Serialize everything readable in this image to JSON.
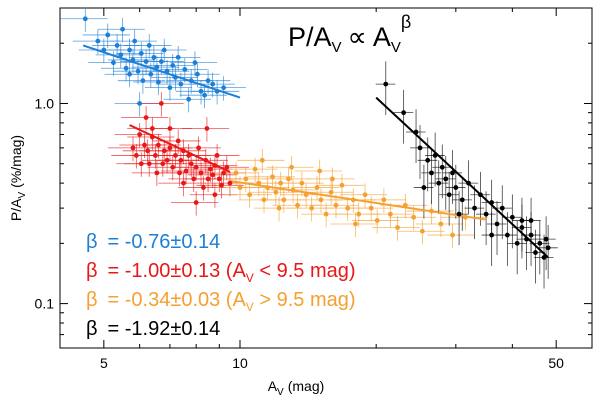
{
  "chart_data": {
    "type": "scatter",
    "title": {
      "main": "P/A",
      "sub": "V",
      "prop": "∝",
      "rhs": "A",
      "rhs_sub": "V",
      "exp": "β"
    },
    "xlabel": {
      "main": "A",
      "sub": "V",
      "unit": "(mag)"
    },
    "ylabel": {
      "main": "P/A",
      "sub": "V",
      "unit": "(%/mag)"
    },
    "xscale": "log",
    "yscale": "log",
    "xlim": [
      4.0,
      60.0
    ],
    "ylim": [
      0.06,
      3.0
    ],
    "xticks": [
      {
        "value": 5,
        "label": "5"
      },
      {
        "value": 10,
        "label": "10"
      },
      {
        "value": 50,
        "label": "50"
      }
    ],
    "yticks": [
      {
        "value": 1.0,
        "label": "1.0"
      },
      {
        "value": 0.1,
        "label": "0.1"
      }
    ],
    "series": [
      {
        "name": "blue",
        "color": "#1e7fd6",
        "fit": {
          "beta": -0.76,
          "x": [
            4.5,
            10.0
          ],
          "y": [
            1.95,
            1.07
          ]
        },
        "points": [
          [
            4.55,
            2.65
          ],
          [
            4.85,
            2.05
          ],
          [
            5.0,
            1.85
          ],
          [
            5.1,
            2.2
          ],
          [
            5.25,
            1.6
          ],
          [
            5.35,
            1.95
          ],
          [
            5.45,
            1.75
          ],
          [
            5.5,
            2.35
          ],
          [
            5.6,
            1.5
          ],
          [
            5.7,
            1.85
          ],
          [
            5.8,
            1.65
          ],
          [
            5.85,
            2.05
          ],
          [
            5.95,
            1.45
          ],
          [
            6.05,
            1.78
          ],
          [
            6.1,
            1.3
          ],
          [
            6.2,
            1.62
          ],
          [
            6.3,
            1.95
          ],
          [
            6.35,
            1.4
          ],
          [
            6.45,
            1.7
          ],
          [
            6.55,
            1.52
          ],
          [
            6.6,
            1.28
          ],
          [
            6.7,
            1.62
          ],
          [
            6.8,
            1.85
          ],
          [
            6.9,
            1.45
          ],
          [
            7.0,
            1.2
          ],
          [
            7.1,
            1.55
          ],
          [
            7.2,
            1.35
          ],
          [
            7.3,
            1.7
          ],
          [
            7.4,
            1.25
          ],
          [
            7.55,
            1.48
          ],
          [
            7.7,
            1.05
          ],
          [
            7.8,
            1.3
          ],
          [
            7.95,
            1.6
          ],
          [
            8.05,
            1.4
          ],
          [
            8.2,
            1.15
          ],
          [
            8.35,
            1.1
          ],
          [
            8.5,
            1.3
          ],
          [
            8.7,
            1.25
          ],
          [
            8.9,
            1.15
          ],
          [
            9.2,
            1.2
          ],
          [
            6.0,
            1.0
          ],
          [
            5.7,
            1.4
          ]
        ]
      },
      {
        "name": "red",
        "color": "#e81818",
        "fit": {
          "beta": -1.0,
          "x": [
            5.7,
            9.5
          ],
          "y": [
            0.78,
            0.455
          ]
        },
        "points": [
          [
            5.8,
            0.6
          ],
          [
            5.9,
            0.55
          ],
          [
            6.0,
            0.7
          ],
          [
            6.05,
            0.5
          ],
          [
            6.15,
            0.62
          ],
          [
            6.2,
            0.85
          ],
          [
            6.25,
            0.58
          ],
          [
            6.3,
            0.5
          ],
          [
            6.4,
            0.68
          ],
          [
            6.5,
            0.55
          ],
          [
            6.55,
            0.45
          ],
          [
            6.6,
            0.62
          ],
          [
            6.7,
            1.0
          ],
          [
            6.75,
            0.5
          ],
          [
            6.8,
            0.58
          ],
          [
            6.9,
            0.52
          ],
          [
            7.0,
            0.6
          ],
          [
            7.1,
            0.48
          ],
          [
            7.2,
            0.55
          ],
          [
            7.3,
            0.65
          ],
          [
            7.35,
            0.45
          ],
          [
            7.4,
            0.52
          ],
          [
            7.5,
            0.58
          ],
          [
            7.6,
            0.46
          ],
          [
            7.7,
            0.55
          ],
          [
            7.8,
            0.5
          ],
          [
            7.9,
            0.42
          ],
          [
            8.0,
            0.48
          ],
          [
            8.1,
            0.6
          ],
          [
            8.2,
            0.45
          ],
          [
            8.3,
            0.38
          ],
          [
            8.4,
            0.52
          ],
          [
            8.5,
            0.42
          ],
          [
            8.6,
            0.47
          ],
          [
            8.7,
            0.44
          ],
          [
            8.8,
            0.35
          ],
          [
            8.9,
            0.55
          ],
          [
            9.0,
            0.42
          ],
          [
            9.1,
            0.39
          ],
          [
            9.2,
            0.45
          ],
          [
            9.35,
            0.48
          ],
          [
            9.5,
            0.4
          ],
          [
            8.45,
            0.75
          ],
          [
            7.0,
            0.75
          ],
          [
            8.0,
            0.32
          ],
          [
            6.4,
            0.75
          ],
          [
            7.5,
            0.4
          ],
          [
            8.8,
            0.49
          ]
        ]
      },
      {
        "name": "orange",
        "color": "#f5a030",
        "fit": {
          "beta": -0.34,
          "x": [
            9.5,
            35.0
          ],
          "y": [
            0.41,
            0.263
          ]
        },
        "points": [
          [
            9.8,
            0.45
          ],
          [
            10.0,
            0.38
          ],
          [
            10.3,
            0.42
          ],
          [
            10.5,
            0.35
          ],
          [
            10.8,
            0.47
          ],
          [
            11.0,
            0.4
          ],
          [
            11.3,
            0.33
          ],
          [
            11.5,
            0.38
          ],
          [
            11.8,
            0.43
          ],
          [
            12.0,
            0.36
          ],
          [
            12.3,
            0.4
          ],
          [
            12.5,
            0.33
          ],
          [
            12.8,
            0.42
          ],
          [
            13.1,
            0.37
          ],
          [
            13.4,
            0.31
          ],
          [
            13.7,
            0.4
          ],
          [
            14.0,
            0.35
          ],
          [
            14.4,
            0.3
          ],
          [
            14.8,
            0.38
          ],
          [
            15.1,
            0.33
          ],
          [
            15.5,
            0.28
          ],
          [
            15.9,
            0.36
          ],
          [
            16.3,
            0.31
          ],
          [
            16.8,
            0.39
          ],
          [
            17.3,
            0.3
          ],
          [
            17.8,
            0.33
          ],
          [
            18.3,
            0.28
          ],
          [
            18.9,
            0.35
          ],
          [
            19.5,
            0.3
          ],
          [
            20.1,
            0.26
          ],
          [
            20.8,
            0.33
          ],
          [
            21.5,
            0.28
          ],
          [
            22.3,
            0.24
          ],
          [
            23.2,
            0.31
          ],
          [
            24.2,
            0.27
          ],
          [
            25.3,
            0.23
          ],
          [
            26.5,
            0.29
          ],
          [
            27.8,
            0.25
          ],
          [
            29.5,
            0.22
          ],
          [
            31.5,
            0.27
          ],
          [
            13.0,
            0.48
          ],
          [
            15.0,
            0.46
          ],
          [
            11.2,
            0.52
          ],
          [
            12.2,
            0.3
          ],
          [
            16.0,
            0.42
          ],
          [
            18.0,
            0.25
          ]
        ]
      },
      {
        "name": "black",
        "color": "#000000",
        "fit": {
          "beta": -1.92,
          "x": [
            20.0,
            48.0
          ],
          "y": [
            1.07,
            0.17
          ]
        },
        "points": [
          [
            21.0,
            1.25
          ],
          [
            23.0,
            0.9
          ],
          [
            24.5,
            0.72
          ],
          [
            25.0,
            0.6
          ],
          [
            26.0,
            0.52
          ],
          [
            26.5,
            0.45
          ],
          [
            27.0,
            0.55
          ],
          [
            27.5,
            0.4
          ],
          [
            28.0,
            0.48
          ],
          [
            28.5,
            0.42
          ],
          [
            29.0,
            0.35
          ],
          [
            29.5,
            0.45
          ],
          [
            30.0,
            0.38
          ],
          [
            31.0,
            0.33
          ],
          [
            32.0,
            0.4
          ],
          [
            33.0,
            0.3
          ],
          [
            34.0,
            0.35
          ],
          [
            35.0,
            0.28
          ],
          [
            36.0,
            0.32
          ],
          [
            37.0,
            0.25
          ],
          [
            38.0,
            0.3
          ],
          [
            39.0,
            0.22
          ],
          [
            40.0,
            0.27
          ],
          [
            41.0,
            0.2
          ],
          [
            42.0,
            0.24
          ],
          [
            43.0,
            0.21
          ],
          [
            44.0,
            0.26
          ],
          [
            45.0,
            0.18
          ],
          [
            46.0,
            0.2
          ],
          [
            47.0,
            0.17
          ],
          [
            48.0,
            0.19
          ],
          [
            25.5,
            0.38
          ],
          [
            30.5,
            0.28
          ],
          [
            36.0,
            0.22
          ],
          [
            42.0,
            0.26
          ],
          [
            44.0,
            0.22
          ],
          [
            47.5,
            0.21
          ]
        ]
      }
    ],
    "legend": [
      {
        "sym": "β",
        "text": "= -0.76±0.14",
        "color": "#1e7fd6"
      },
      {
        "sym": "β",
        "text": "= -1.00±0.13 (A",
        "sub": "V",
        "tail": " < 9.5 mag)",
        "color": "#e81818"
      },
      {
        "sym": "β",
        "text": "= -0.34±0.03 (A",
        "sub": "V",
        "tail": " > 9.5 mag)",
        "color": "#f5a030"
      },
      {
        "sym": "β",
        "text": "= -1.92±0.14",
        "color": "#000000"
      }
    ]
  }
}
